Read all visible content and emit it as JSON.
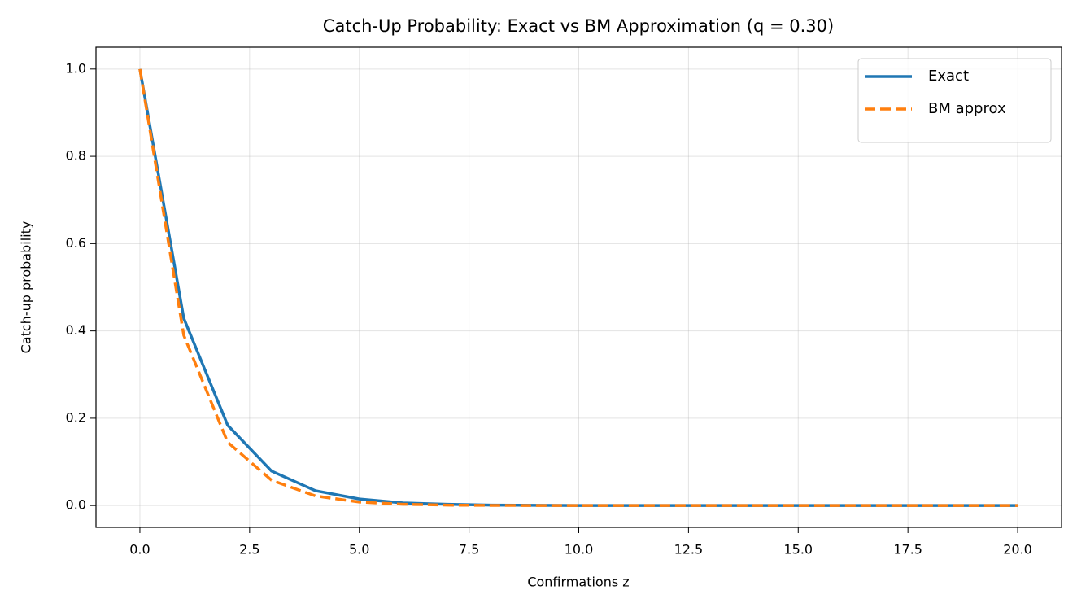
{
  "chart_data": {
    "type": "line",
    "title": "Catch-Up Probability: Exact vs BM Approximation (q = 0.30)",
    "x_label": "Confirmations z",
    "y_label": "Catch-up probability",
    "x": [
      0,
      1,
      2,
      3,
      4,
      5,
      6,
      7,
      8,
      9,
      10,
      11,
      12,
      13,
      14,
      15,
      16,
      17,
      18,
      19,
      20
    ],
    "series": [
      {
        "name": "Exact",
        "color": "#1f77b4",
        "linestyle": "solid",
        "values": [
          1.0,
          0.429,
          0.184,
          0.079,
          0.034,
          0.015,
          0.006,
          0.003,
          0.001,
          0.0005,
          0.0002,
          0.0001,
          0,
          0,
          0,
          0,
          0,
          0,
          0,
          0,
          0
        ]
      },
      {
        "name": "BM approx",
        "color": "#ff7f0e",
        "linestyle": "dashed",
        "values": [
          1.0,
          0.39,
          0.145,
          0.058,
          0.022,
          0.008,
          0.003,
          0.001,
          0.0004,
          0.0001,
          0,
          0,
          0,
          0,
          0,
          0,
          0,
          0,
          0,
          0,
          0
        ]
      }
    ],
    "xlim": [
      -1,
      21
    ],
    "ylim": [
      -0.05,
      1.05
    ],
    "xticks": [
      {
        "value": 0,
        "label": "0.0"
      },
      2.5,
      {
        "value": 5,
        "label": "5.0"
      },
      7.5,
      {
        "value": 10,
        "label": "10.0"
      },
      12.5,
      {
        "value": 15,
        "label": "15.0"
      },
      17.5,
      {
        "value": 20,
        "label": "20.0"
      }
    ],
    "yticks": [
      {
        "value": 0,
        "label": "0.0"
      },
      0.2,
      0.4,
      0.6,
      0.8,
      {
        "value": 1,
        "label": "1.0"
      }
    ],
    "grid": true,
    "legend": "upper right"
  }
}
